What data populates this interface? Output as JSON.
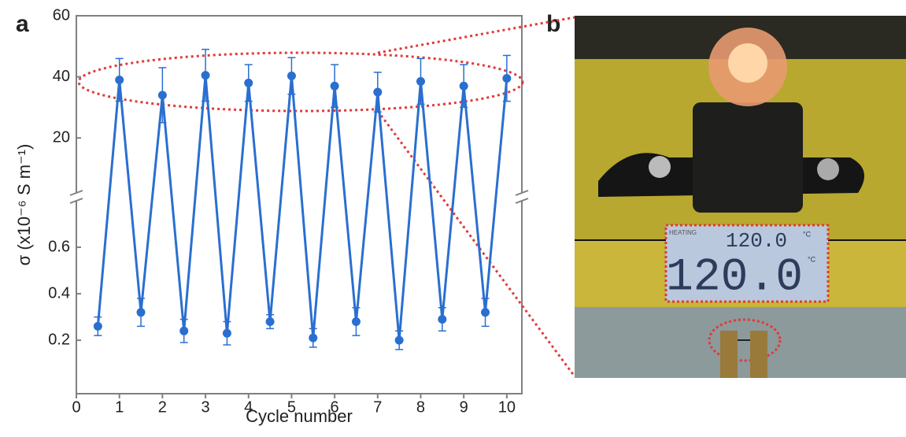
{
  "chart_data": {
    "type": "line",
    "panel_label": "a",
    "xlabel": "Cycle number",
    "ylabel": "σ (x10⁻⁶ S m⁻¹)",
    "x": [
      0.5,
      1,
      1.5,
      2,
      2.5,
      3,
      3.5,
      4,
      4.5,
      5,
      5.5,
      6,
      6.5,
      7,
      7.5,
      8,
      8.5,
      9,
      9.5,
      10
    ],
    "series": [
      {
        "color": "#2a6fd0",
        "values": [
          0.26,
          39,
          0.32,
          34,
          0.24,
          40.5,
          0.23,
          38,
          0.28,
          40.3,
          0.21,
          37,
          0.28,
          35,
          0.2,
          38.5,
          0.29,
          37,
          0.32,
          39.5
        ],
        "errors": [
          0.04,
          7,
          0.06,
          9,
          0.05,
          8.5,
          0.05,
          6,
          0.03,
          6,
          0.04,
          7,
          0.06,
          6.5,
          0.04,
          7.5,
          0.05,
          7,
          0.06,
          7.5
        ]
      }
    ],
    "xlim": [
      0,
      10.35
    ],
    "xticks": [
      0,
      1,
      2,
      3,
      4,
      5,
      6,
      7,
      8,
      9,
      10
    ],
    "broken_axis": [
      {
        "ylim": [
          2,
          60
        ],
        "yticks": [
          20,
          40,
          60
        ]
      },
      {
        "ylim": [
          -0.03,
          0.8
        ],
        "yticks": [
          0.2,
          0.4,
          0.6
        ]
      }
    ]
  },
  "photo": {
    "panel_label": "b",
    "mode": "HEATING",
    "display_top": "120.0",
    "display_main": "120.0",
    "unit": "°C"
  }
}
